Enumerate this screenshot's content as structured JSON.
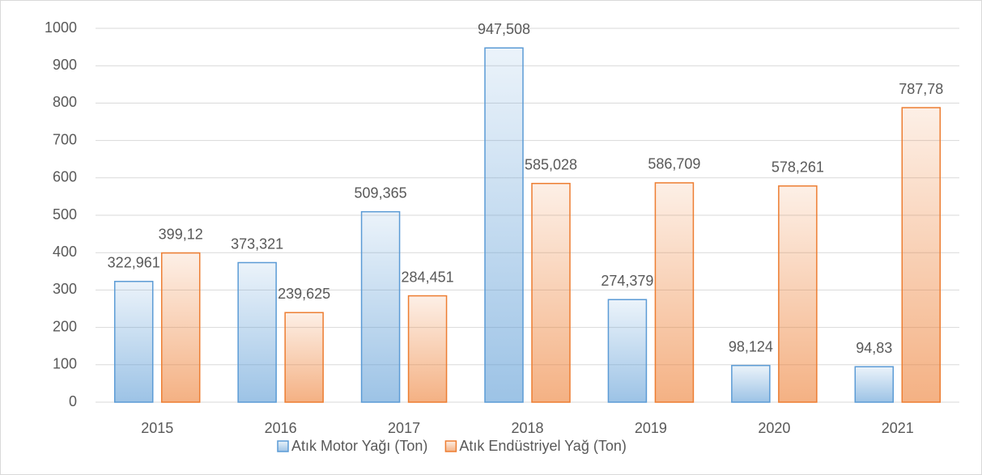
{
  "chart_data": {
    "type": "bar",
    "categories": [
      "2015",
      "2016",
      "2017",
      "2018",
      "2019",
      "2020",
      "2021"
    ],
    "series": [
      {
        "name": "Atık Motor Yağı (Ton)",
        "color": "#5b9bd5",
        "values": [
          322.961,
          373.321,
          509.365,
          947.508,
          274.379,
          98.124,
          94.83
        ],
        "value_labels": [
          "322,961",
          "373,321",
          "509,365",
          "947,508",
          "274,379",
          "98,124",
          "94,83"
        ]
      },
      {
        "name": "Atık Endüstriyel Yağ (Ton)",
        "color": "#ed7d31",
        "values": [
          399.12,
          239.625,
          284.451,
          585.028,
          586.709,
          578.261,
          787.78
        ],
        "value_labels": [
          "399,12",
          "239,625",
          "284,451",
          "585,028",
          "586,709",
          "578,261",
          "787,78"
        ]
      }
    ],
    "ylim": [
      0,
      1000
    ],
    "yticks": [
      0,
      100,
      200,
      300,
      400,
      500,
      600,
      700,
      800,
      900,
      1000
    ],
    "grid": true,
    "legend": "bottom"
  }
}
